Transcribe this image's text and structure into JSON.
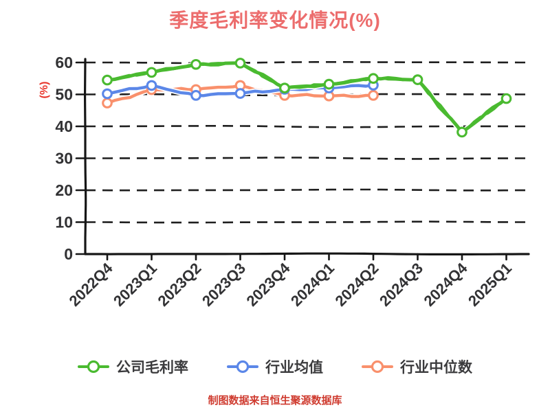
{
  "title": "季度毛利率变化情况(%)",
  "footer": "制图数据来自恒生聚源数据库",
  "y_axis": {
    "label": "(%)",
    "ticks": [
      0,
      10,
      20,
      30,
      40,
      50,
      60
    ]
  },
  "chart_data": {
    "type": "line",
    "style": "hand-drawn-sketch",
    "title": "季度毛利率变化情况(%)",
    "xlabel": "",
    "ylabel": "(%)",
    "ylim": [
      0,
      60
    ],
    "yticks": [
      0,
      10,
      20,
      30,
      40,
      50,
      60
    ],
    "grid": true,
    "grid_style": "dashed",
    "legend_position": "bottom",
    "categories": [
      "2022Q4",
      "2023Q1",
      "2023Q2",
      "2023Q3",
      "2023Q4",
      "2024Q1",
      "2024Q2",
      "2024Q3",
      "2024Q4",
      "2025Q1"
    ],
    "series": [
      {
        "name": "公司毛利率",
        "color": "#4aba30",
        "marker": "circle-white-fill",
        "values": [
          54.5,
          56.9,
          59.4,
          59.8,
          52.0,
          53.2,
          55.0,
          54.6,
          38.2,
          48.7
        ]
      },
      {
        "name": "行业均值",
        "color": "#5b87e8",
        "marker": "circle-white-fill",
        "values": [
          50.2,
          52.8,
          49.7,
          50.3,
          51.6,
          52.0,
          52.9
        ]
      },
      {
        "name": "行业中位数",
        "color": "#f9906c",
        "marker": "circle-white-fill",
        "values": [
          47.3,
          51.5,
          51.5,
          52.8,
          49.7,
          49.5,
          49.7
        ]
      }
    ]
  },
  "colors": {
    "background": "#ffffff",
    "title": "#ec6d6d",
    "y_axis_label": "#e8352b",
    "footer": "#cf3b2f",
    "axis": "#161616",
    "gridline": "#1f1f1f",
    "tick_label": "#323234",
    "legend_text": "#3b3b3d",
    "series_company": "#4aba30",
    "series_industry_avg": "#5b87e8",
    "series_industry_median": "#f9906c"
  }
}
